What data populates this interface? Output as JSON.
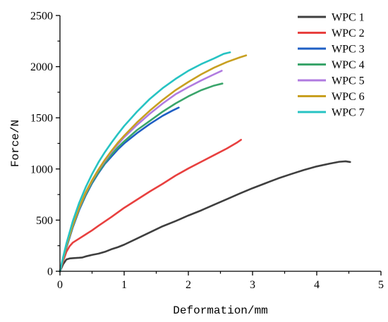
{
  "chart_data": {
    "type": "line",
    "title": "",
    "xlabel": "Deformation/mm",
    "ylabel": "Force/N",
    "xlim": [
      0,
      5
    ],
    "ylim": [
      0,
      2500
    ],
    "xticks": [
      0,
      1,
      2,
      3,
      4,
      5
    ],
    "yticks": [
      0,
      500,
      1000,
      1500,
      2000,
      2500
    ],
    "grid": false,
    "legend_position": "top-right",
    "series": [
      {
        "name": "WPC 1",
        "color": "#3f3f3f",
        "points": [
          [
            0,
            0
          ],
          [
            0.05,
            70
          ],
          [
            0.1,
            115
          ],
          [
            0.15,
            125
          ],
          [
            0.2,
            128
          ],
          [
            0.3,
            132
          ],
          [
            0.35,
            135
          ],
          [
            0.4,
            145
          ],
          [
            0.5,
            160
          ],
          [
            0.6,
            172
          ],
          [
            0.7,
            190
          ],
          [
            0.8,
            215
          ],
          [
            0.9,
            235
          ],
          [
            1.0,
            260
          ],
          [
            1.2,
            320
          ],
          [
            1.4,
            380
          ],
          [
            1.6,
            440
          ],
          [
            1.8,
            490
          ],
          [
            2.0,
            545
          ],
          [
            2.2,
            595
          ],
          [
            2.4,
            650
          ],
          [
            2.6,
            705
          ],
          [
            2.8,
            760
          ],
          [
            3.0,
            812
          ],
          [
            3.2,
            860
          ],
          [
            3.4,
            908
          ],
          [
            3.6,
            950
          ],
          [
            3.8,
            990
          ],
          [
            4.0,
            1025
          ],
          [
            4.2,
            1052
          ],
          [
            4.35,
            1070
          ],
          [
            4.45,
            1075
          ],
          [
            4.52,
            1068
          ]
        ]
      },
      {
        "name": "WPC 2",
        "color": "#e8403f",
        "points": [
          [
            0,
            0
          ],
          [
            0.05,
            100
          ],
          [
            0.1,
            190
          ],
          [
            0.15,
            245
          ],
          [
            0.2,
            280
          ],
          [
            0.3,
            320
          ],
          [
            0.4,
            360
          ],
          [
            0.5,
            400
          ],
          [
            0.6,
            445
          ],
          [
            0.8,
            530
          ],
          [
            1.0,
            620
          ],
          [
            1.2,
            700
          ],
          [
            1.4,
            780
          ],
          [
            1.6,
            855
          ],
          [
            1.8,
            935
          ],
          [
            2.0,
            1005
          ],
          [
            2.2,
            1070
          ],
          [
            2.4,
            1135
          ],
          [
            2.6,
            1200
          ],
          [
            2.75,
            1255
          ],
          [
            2.82,
            1285
          ]
        ]
      },
      {
        "name": "WPC 3",
        "color": "#1f5fc4",
        "points": [
          [
            0,
            0
          ],
          [
            0.05,
            120
          ],
          [
            0.1,
            230
          ],
          [
            0.2,
            430
          ],
          [
            0.3,
            600
          ],
          [
            0.4,
            740
          ],
          [
            0.5,
            860
          ],
          [
            0.6,
            960
          ],
          [
            0.7,
            1050
          ],
          [
            0.8,
            1120
          ],
          [
            0.9,
            1190
          ],
          [
            1.0,
            1250
          ],
          [
            1.2,
            1350
          ],
          [
            1.4,
            1440
          ],
          [
            1.6,
            1520
          ],
          [
            1.75,
            1570
          ],
          [
            1.85,
            1600
          ]
        ]
      },
      {
        "name": "WPC 4",
        "color": "#3aa56b",
        "points": [
          [
            0,
            0
          ],
          [
            0.05,
            120
          ],
          [
            0.1,
            240
          ],
          [
            0.2,
            440
          ],
          [
            0.3,
            610
          ],
          [
            0.4,
            750
          ],
          [
            0.5,
            870
          ],
          [
            0.6,
            970
          ],
          [
            0.7,
            1060
          ],
          [
            0.8,
            1140
          ],
          [
            0.9,
            1210
          ],
          [
            1.0,
            1270
          ],
          [
            1.2,
            1380
          ],
          [
            1.4,
            1470
          ],
          [
            1.6,
            1560
          ],
          [
            1.8,
            1640
          ],
          [
            2.0,
            1710
          ],
          [
            2.2,
            1770
          ],
          [
            2.4,
            1815
          ],
          [
            2.53,
            1835
          ]
        ]
      },
      {
        "name": "WPC 5",
        "color": "#b07be0",
        "points": [
          [
            0,
            0
          ],
          [
            0.05,
            125
          ],
          [
            0.1,
            245
          ],
          [
            0.2,
            450
          ],
          [
            0.3,
            620
          ],
          [
            0.4,
            765
          ],
          [
            0.5,
            885
          ],
          [
            0.6,
            990
          ],
          [
            0.7,
            1080
          ],
          [
            0.8,
            1165
          ],
          [
            0.9,
            1240
          ],
          [
            1.0,
            1310
          ],
          [
            1.2,
            1430
          ],
          [
            1.4,
            1540
          ],
          [
            1.6,
            1640
          ],
          [
            1.8,
            1730
          ],
          [
            2.0,
            1800
          ],
          [
            2.2,
            1865
          ],
          [
            2.4,
            1925
          ],
          [
            2.52,
            1960
          ]
        ]
      },
      {
        "name": "WPC 6",
        "color": "#c8a021",
        "points": [
          [
            0,
            0
          ],
          [
            0.05,
            125
          ],
          [
            0.1,
            245
          ],
          [
            0.2,
            450
          ],
          [
            0.3,
            625
          ],
          [
            0.4,
            770
          ],
          [
            0.5,
            890
          ],
          [
            0.6,
            995
          ],
          [
            0.7,
            1090
          ],
          [
            0.8,
            1175
          ],
          [
            0.9,
            1255
          ],
          [
            1.0,
            1325
          ],
          [
            1.2,
            1455
          ],
          [
            1.4,
            1570
          ],
          [
            1.6,
            1675
          ],
          [
            1.8,
            1770
          ],
          [
            2.0,
            1850
          ],
          [
            2.2,
            1925
          ],
          [
            2.4,
            1990
          ],
          [
            2.6,
            2045
          ],
          [
            2.8,
            2090
          ],
          [
            2.9,
            2110
          ]
        ]
      },
      {
        "name": "WPC 7",
        "color": "#27c3c3",
        "points": [
          [
            0,
            0
          ],
          [
            0.05,
            140
          ],
          [
            0.1,
            270
          ],
          [
            0.2,
            490
          ],
          [
            0.3,
            670
          ],
          [
            0.4,
            820
          ],
          [
            0.5,
            950
          ],
          [
            0.6,
            1065
          ],
          [
            0.7,
            1165
          ],
          [
            0.8,
            1255
          ],
          [
            0.9,
            1340
          ],
          [
            1.0,
            1420
          ],
          [
            1.2,
            1560
          ],
          [
            1.4,
            1685
          ],
          [
            1.6,
            1790
          ],
          [
            1.8,
            1880
          ],
          [
            2.0,
            1960
          ],
          [
            2.2,
            2025
          ],
          [
            2.4,
            2080
          ],
          [
            2.55,
            2125
          ],
          [
            2.65,
            2140
          ]
        ]
      }
    ]
  }
}
